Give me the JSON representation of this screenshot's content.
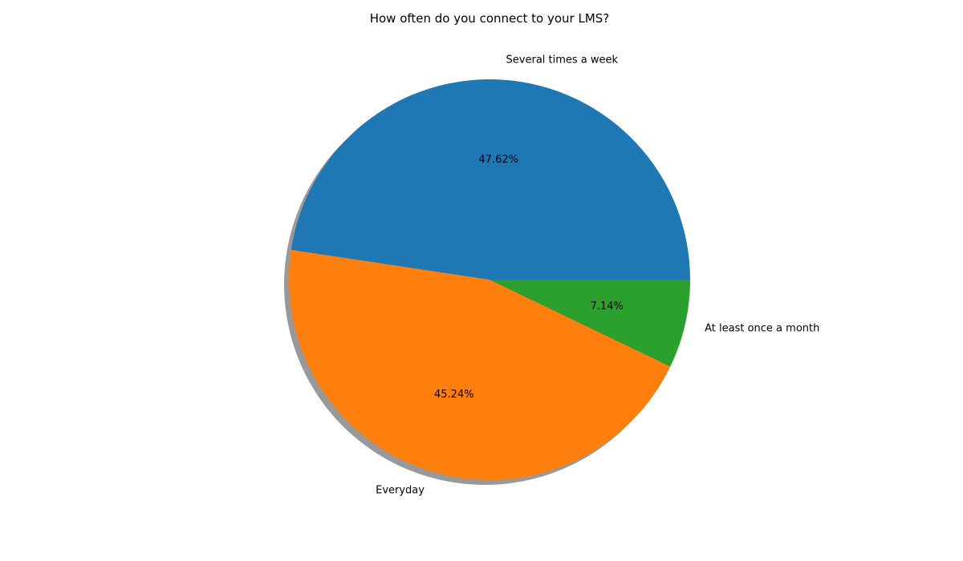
{
  "chart_data": {
    "type": "pie",
    "title": "How often do you connect to your LMS?",
    "slices": [
      {
        "label": "Several times a week",
        "value": 47.62,
        "pct_label": "47.62%",
        "color": "#1f77b4"
      },
      {
        "label": "Everyday",
        "value": 45.24,
        "pct_label": "45.24%",
        "color": "#ff7f0e"
      },
      {
        "label": "At least once a month",
        "value": 7.14,
        "pct_label": "7.14%",
        "color": "#2ca02c"
      }
    ],
    "start_angle_deg": 0,
    "direction": "counterclockwise",
    "shadow": true,
    "legend": "none"
  }
}
